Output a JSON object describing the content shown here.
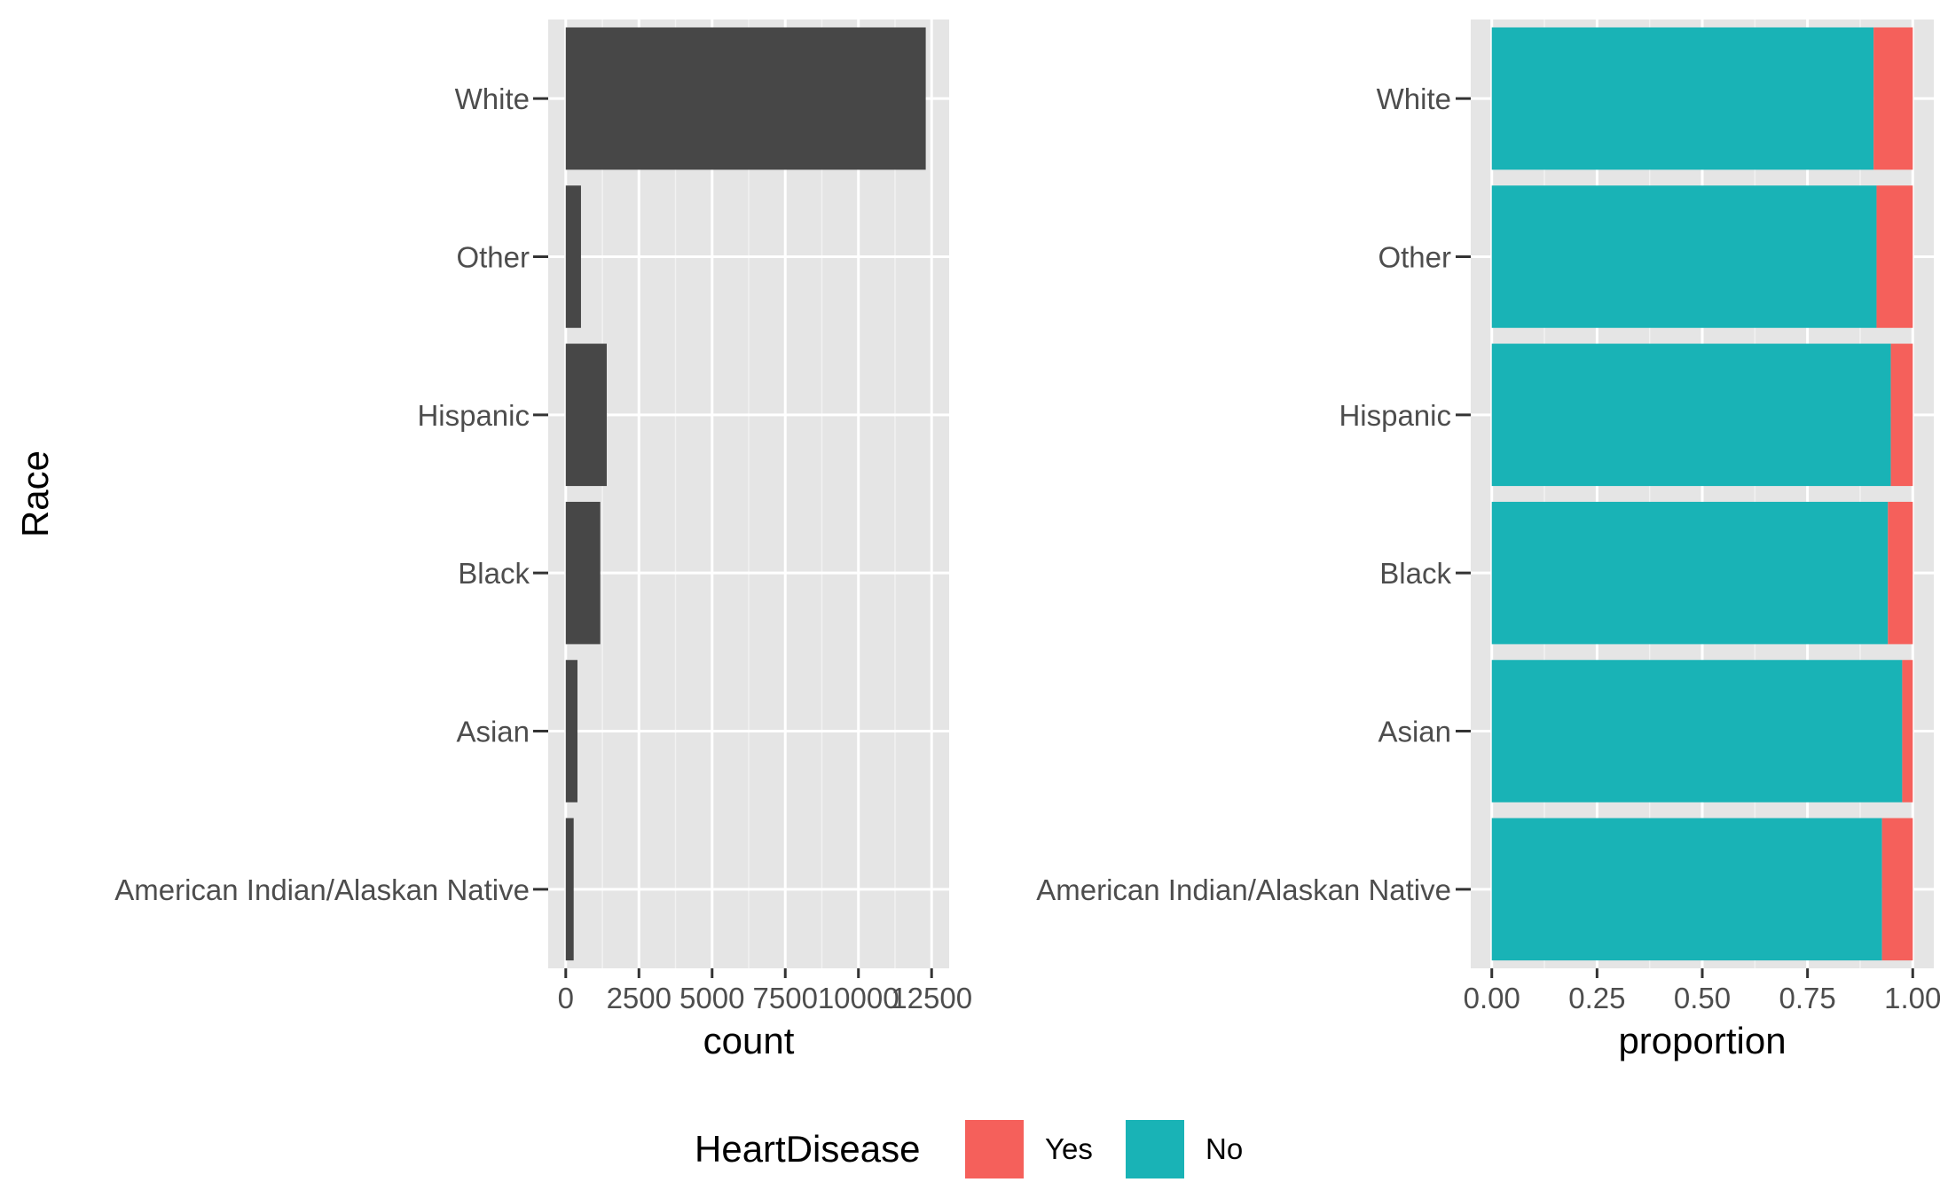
{
  "chart_data": [
    {
      "type": "bar",
      "orientation": "horizontal",
      "categories": [
        "White",
        "Other",
        "Hispanic",
        "Black",
        "Asian",
        "American Indian/Alaskan Native"
      ],
      "values": [
        12300,
        520,
        1400,
        1180,
        400,
        270
      ],
      "xlabel": "count",
      "ylabel": "Race",
      "xlim": [
        -600,
        13100
      ],
      "xticks": [
        0,
        2500,
        5000,
        7500,
        10000,
        12500
      ],
      "xtick_labels": [
        "0",
        "2500",
        "5000",
        "7500",
        "10000",
        "12500"
      ],
      "bar_color": "#474747",
      "panel_background": "#e5e5e5",
      "grid": true
    },
    {
      "type": "bar",
      "orientation": "horizontal",
      "stacked": true,
      "categories": [
        "White",
        "Other",
        "Hispanic",
        "Black",
        "Asian",
        "American Indian/Alaskan Native"
      ],
      "series": [
        {
          "name": "No",
          "color": "#19b3b6",
          "values": [
            0.907,
            0.914,
            0.948,
            0.941,
            0.975,
            0.927
          ]
        },
        {
          "name": "Yes",
          "color": "#f5605b",
          "values": [
            0.093,
            0.086,
            0.052,
            0.059,
            0.025,
            0.073
          ]
        }
      ],
      "xlabel": "proportion",
      "ylabel": "",
      "xlim": [
        -0.05,
        1.05
      ],
      "xticks": [
        0,
        0.25,
        0.5,
        0.75,
        1.0
      ],
      "xtick_labels": [
        "0.00",
        "0.25",
        "0.50",
        "0.75",
        "1.00"
      ],
      "panel_background": "#e5e5e5",
      "grid": true
    }
  ],
  "legend": {
    "title": "HeartDisease",
    "position": "bottom",
    "items": [
      {
        "label": "Yes",
        "color": "#f5605b"
      },
      {
        "label": "No",
        "color": "#19b3b6"
      }
    ]
  }
}
